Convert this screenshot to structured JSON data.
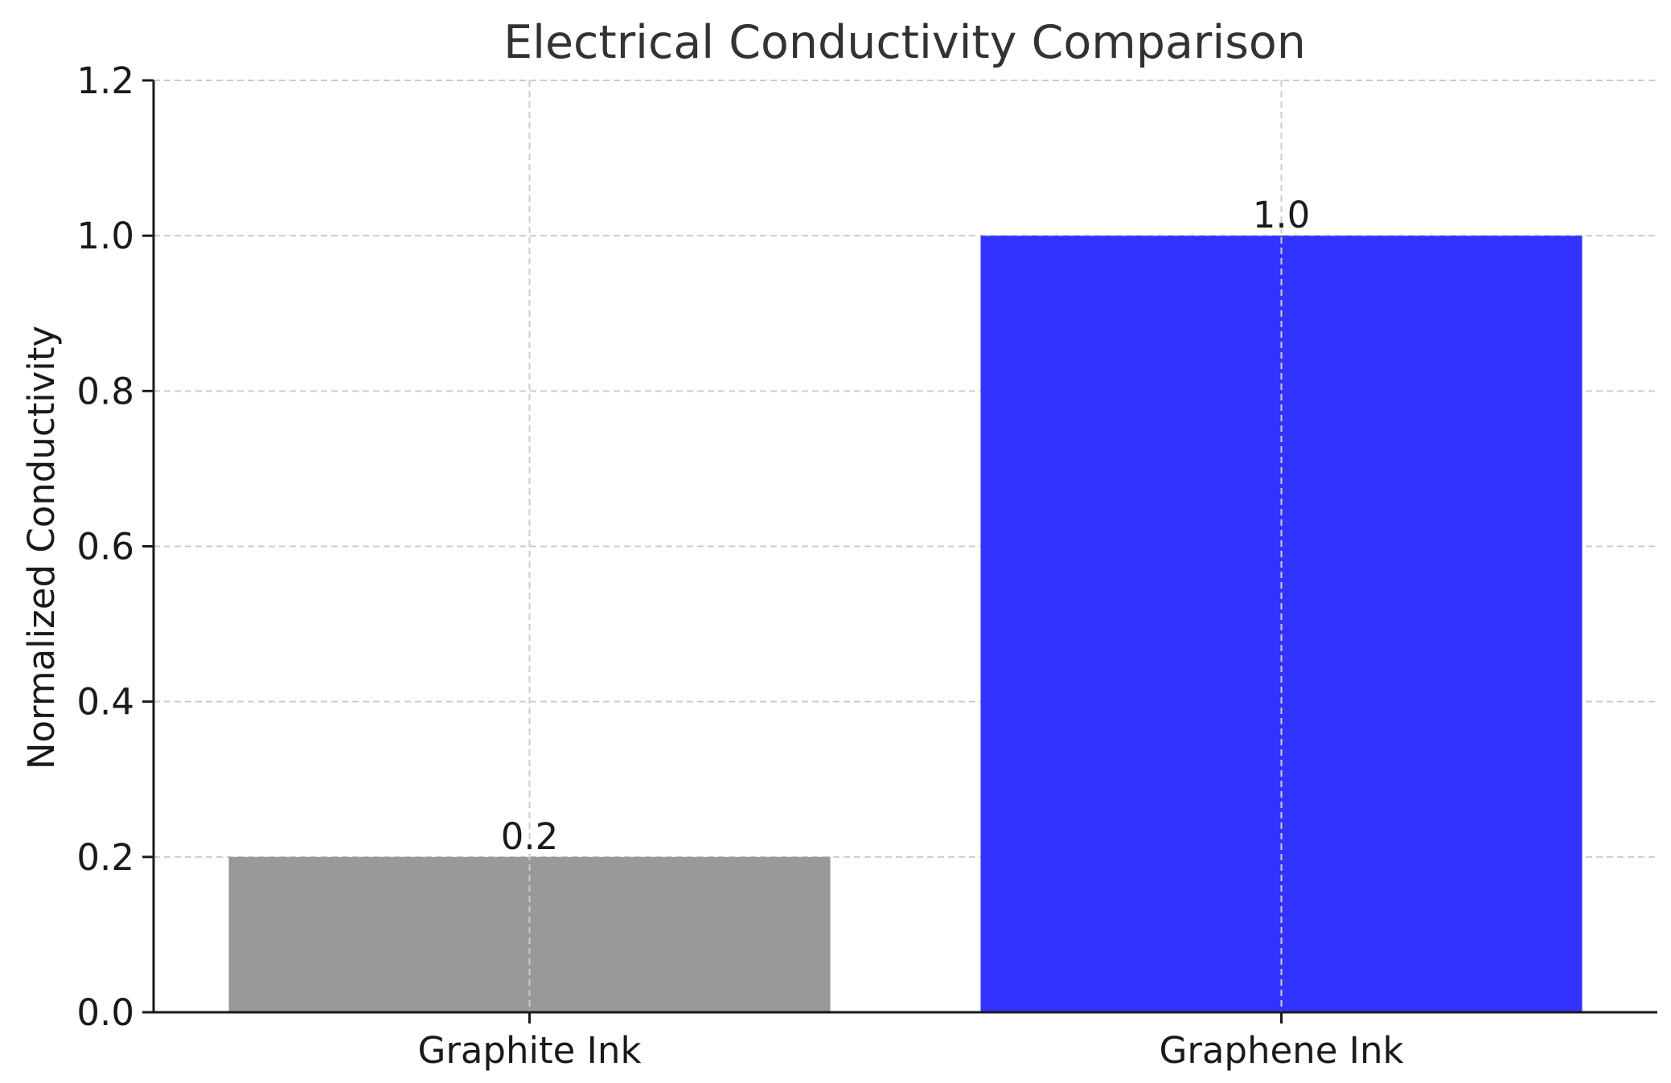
{
  "chart_data": {
    "type": "bar",
    "title": "Electrical Conductivity Comparison",
    "xlabel": "",
    "ylabel": "Normalized Conductivity",
    "categories": [
      "Graphite Ink",
      "Graphene Ink"
    ],
    "values": [
      0.2,
      1.0
    ],
    "data_labels": [
      "0.2",
      "1.0"
    ],
    "colors": [
      "#999999",
      "#3333ff"
    ],
    "ylim": [
      0,
      1.2
    ],
    "yticks": [
      0.0,
      0.2,
      0.4,
      0.6,
      0.8,
      1.0,
      1.2
    ],
    "ytick_labels": [
      "0.0",
      "0.2",
      "0.4",
      "0.6",
      "0.8",
      "1.0",
      "1.2"
    ],
    "grid": true,
    "legend": "none"
  }
}
